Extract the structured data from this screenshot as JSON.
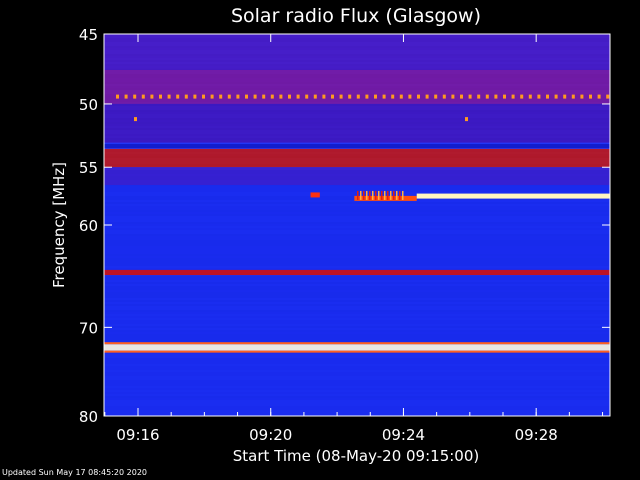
{
  "chart_data": {
    "type": "heatmap",
    "title": "Solar radio Flux (Glasgow)",
    "xlabel": "Start Time (08-May-20 09:15:00)",
    "ylabel": "Frequency [MHz]",
    "x_range_minutes": [
      9.25,
      14.55
    ],
    "x_ticks": [
      {
        "value": 9.25,
        "label": "09:16"
      },
      {
        "value": 10.25,
        "label": "09:20"
      },
      {
        "value": 11.25,
        "label": "09:24"
      },
      {
        "value": 12.25,
        "label": "09:28"
      }
    ],
    "y_scale": "log",
    "y_range": [
      45,
      80
    ],
    "y_ticks": [
      45,
      50,
      55,
      60,
      70,
      80
    ],
    "bands": [
      {
        "freq_start": 45,
        "freq_end": 47.5,
        "intensity": "medium-high",
        "color": "#4a1cc4"
      },
      {
        "freq_start": 47.5,
        "freq_end": 50,
        "intensity": "high",
        "color": "#7a1aa0"
      },
      {
        "freq_start": 50,
        "freq_end": 53,
        "intensity": "medium",
        "color": "#4018c0"
      },
      {
        "freq_start": 53.5,
        "freq_end": 55,
        "intensity": "very high",
        "color": "#c01818"
      },
      {
        "freq_start": 55,
        "freq_end": 56.5,
        "intensity": "medium",
        "color": "#3a20d0"
      },
      {
        "freq_start": 56.5,
        "freq_end": 80,
        "intensity": "low",
        "color": "#1a2cf0"
      },
      {
        "freq_start": 64.2,
        "freq_end": 64.7,
        "intensity": "very high",
        "color": "#d01010"
      },
      {
        "freq_start": 71.8,
        "freq_end": 72.5,
        "intensity": "saturated",
        "color": "#fffbe0"
      }
    ],
    "bursts": [
      {
        "time_start": 10.55,
        "time_end": 10.62,
        "freq": 57.3,
        "color": "#ff3010"
      },
      {
        "time_start": 10.88,
        "time_end": 11.35,
        "freq": 57.6,
        "color": "#ff5010"
      },
      {
        "time_start": 11.35,
        "time_end": 14.55,
        "freq": 57.4,
        "color": "#fff6c0"
      }
    ],
    "colorscale": [
      "#000080",
      "#0000ff",
      "#7a00c0",
      "#d01010",
      "#ff8000",
      "#ffff80",
      "#ffffff"
    ]
  },
  "footer": {
    "updated": "Updated Sun May 17 08:45:20 2020"
  }
}
